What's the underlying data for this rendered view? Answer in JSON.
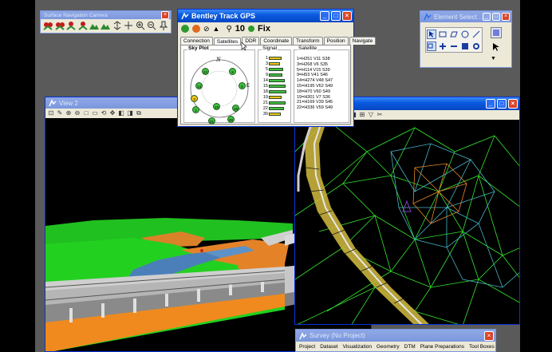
{
  "nav_camera": {
    "title": "Surface Navigation Camera",
    "close": "×",
    "tools": [
      "walk-icon",
      "walk-icon",
      "walk-icon",
      "walk-icon",
      "terrain-icon",
      "terrain-icon",
      "arrows-icon",
      "move-icon",
      "zoom-in-icon",
      "zoom-out-icon",
      "pin-icon"
    ]
  },
  "gps": {
    "title": "Bentley Track GPS",
    "sat_count": "10",
    "fix_label": "Fix",
    "tabs": [
      "Connection",
      "Satellites",
      "DDR",
      "Coordinate",
      "Transform",
      "Position",
      "Navigate"
    ],
    "active_tab": "Satellites",
    "skyplot_title": "Sky Plot",
    "north": "N",
    "east": "E",
    "signal_title": "Signal",
    "satellite_title": "Satellite",
    "signal": [
      {
        "num": "1",
        "level": 0.62,
        "color": "#f3c11a"
      },
      {
        "num": "3",
        "level": 0.55,
        "color": "#f3c11a"
      },
      {
        "num": "5",
        "level": 0.7,
        "color": "#3fbf3f"
      },
      {
        "num": "9",
        "level": 0.66,
        "color": "#3fbf3f"
      },
      {
        "num": "14",
        "level": 0.78,
        "color": "#3fbf3f"
      },
      {
        "num": "15",
        "level": 0.8,
        "color": "#3fbf3f"
      },
      {
        "num": "18",
        "level": 0.84,
        "color": "#3fbf3f"
      },
      {
        "num": "19",
        "level": 0.62,
        "color": "#f3c11a"
      },
      {
        "num": "21",
        "level": 0.8,
        "color": "#3fbf3f"
      },
      {
        "num": "22",
        "level": 0.72,
        "color": "#3fbf3f"
      },
      {
        "num": "30",
        "level": 0.58,
        "color": "#f3c11a"
      }
    ],
    "satellites": [
      "1=H251 V11 S38",
      "3=H268 V6 S35",
      "5=H114 V15 S39",
      "9=H53 V41 S46",
      "14=H274 V48 S47",
      "15=H195 V62 S49",
      "18=H70 V60 S49",
      "19=H301 V7 S36",
      "21=H169 V39 S45",
      "22=H336 V59 S49"
    ],
    "sky_sats": [
      {
        "id": "22",
        "color": "#3fbf3f"
      },
      {
        "id": "9",
        "color": "#3fbf3f"
      },
      {
        "id": "14",
        "color": "#3fbf3f"
      },
      {
        "id": "5",
        "color": "#3fbf3f"
      },
      {
        "id": "3",
        "color": "#f3c11a"
      },
      {
        "id": "1",
        "color": "#3fbf3f"
      },
      {
        "id": "15",
        "color": "#3fbf3f"
      },
      {
        "id": "19",
        "color": "#3fbf3f"
      },
      {
        "id": "21",
        "color": "#3fbf3f"
      },
      {
        "id": "30",
        "color": "#3fbf3f"
      }
    ]
  },
  "element_select": {
    "title": "Element Select..."
  },
  "view2": {
    "title": "View 2"
  },
  "survey": {
    "title": "Survey (No Project)",
    "close": "×",
    "menu": [
      "Project",
      "Dataset",
      "Visualization",
      "Geometry",
      "DTM",
      "Plane Preparations",
      "Tool Boxes"
    ]
  },
  "colors": {
    "titlebar_active": "#0a5be0",
    "titlebar_inactive": "#7b97dd",
    "terrain_green": "#22d11f",
    "road_gray": "#c8c8c8",
    "river_blue": "#3a6fb0",
    "mesh_green": "#35e62e",
    "mesh_orange": "#e88a2a",
    "mesh_cyan": "#46b7c9"
  }
}
